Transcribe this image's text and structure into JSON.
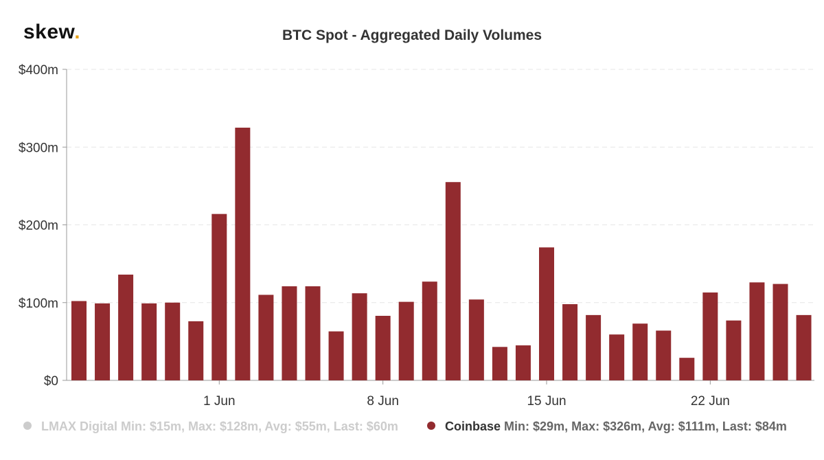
{
  "brand": {
    "name": "skew",
    "dot": "."
  },
  "chart_data": {
    "type": "bar",
    "title": "BTC Spot - Aggregated Daily Volumes",
    "xlabel": "",
    "ylabel": "",
    "ylim": [
      0,
      400
    ],
    "y_ticks": [
      {
        "value": 0,
        "label": "$0"
      },
      {
        "value": 100,
        "label": "$100m"
      },
      {
        "value": 200,
        "label": "$200m"
      },
      {
        "value": 300,
        "label": "$300m"
      },
      {
        "value": 400,
        "label": "$400m"
      }
    ],
    "grid": true,
    "x_ticks": [
      {
        "index": 6,
        "label": "1 Jun"
      },
      {
        "index": 13,
        "label": "8 Jun"
      },
      {
        "index": 20,
        "label": "15 Jun"
      },
      {
        "index": 27,
        "label": "22 Jun"
      }
    ],
    "series": [
      {
        "name": "Coinbase",
        "color": "#922b2f",
        "visible": true,
        "stats": "Min: $29m, Max: $326m, Avg: $111m, Last: $84m",
        "values": [
          102,
          99,
          136,
          99,
          100,
          76,
          214,
          325,
          110,
          121,
          121,
          63,
          112,
          83,
          101,
          127,
          255,
          104,
          43,
          45,
          171,
          98,
          84,
          59,
          73,
          64,
          29,
          113,
          77,
          126,
          124,
          84
        ]
      },
      {
        "name": "LMAX Digital",
        "color": "#cccccc",
        "visible": false,
        "stats": "Min: $15m, Max: $128m, Avg: $55m, Last: $60m"
      }
    ],
    "legend_position": "bottom"
  }
}
